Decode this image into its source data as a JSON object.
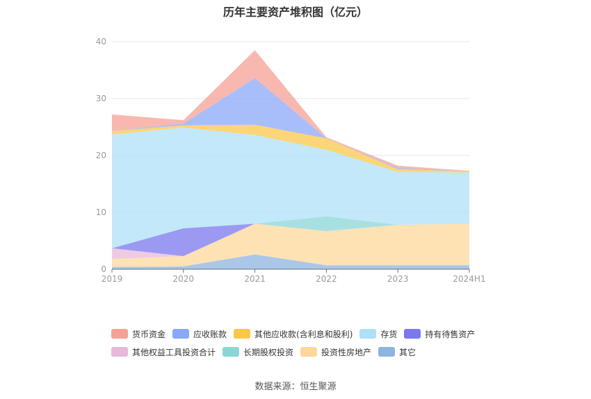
{
  "chart_data": {
    "type": "area",
    "title": "历年主要资产堆积图（亿元）",
    "source": "数据来源：恒生聚源",
    "categories": [
      "2019",
      "2020",
      "2021",
      "2022",
      "2023",
      "2024H1"
    ],
    "ylim": [
      0,
      40
    ],
    "yticks": [
      "0",
      "10",
      "20",
      "30",
      "40"
    ],
    "grid": true,
    "legend_position": "bottom",
    "series": [
      {
        "name": "其它",
        "color": "#8eb4e2",
        "values": [
          0.4,
          0.5,
          2.6,
          0.7,
          0.7,
          0.7
        ]
      },
      {
        "name": "投资性房地产",
        "color": "#fdd89a",
        "values": [
          1.4,
          1.8,
          5.4,
          6.0,
          7.1,
          7.3
        ]
      },
      {
        "name": "长期股权投资",
        "color": "#8ad6d6",
        "values": [
          0.0,
          0.0,
          0.0,
          2.6,
          0.0,
          0.0
        ]
      },
      {
        "name": "其他权益工具投资合计",
        "color": "#e8b9da",
        "values": [
          1.9,
          0.0,
          0.0,
          0.0,
          0.0,
          0.0
        ]
      },
      {
        "name": "持有待售资产",
        "color": "#7b77ee",
        "values": [
          0.0,
          4.9,
          0.0,
          0.0,
          0.0,
          0.0
        ]
      },
      {
        "name": "存货",
        "color": "#aee0f8",
        "values": [
          20.0,
          17.7,
          15.6,
          11.7,
          9.3,
          9.0
        ]
      },
      {
        "name": "其他应收款(含利息和股利)",
        "color": "#fbc74a",
        "values": [
          0.6,
          0.4,
          1.8,
          2.0,
          0.5,
          0.2
        ]
      },
      {
        "name": "应收账款",
        "color": "#8aa8f8",
        "values": [
          0.0,
          0.3,
          8.2,
          0.0,
          0.2,
          0.0
        ]
      },
      {
        "name": "货币资金",
        "color": "#f6a096",
        "values": [
          2.9,
          0.6,
          4.9,
          0.2,
          0.4,
          0.1
        ]
      }
    ]
  },
  "legend_rows": [
    [
      "货币资金",
      "应收账款",
      "其他应收款(含利息和股利)",
      "存货",
      "持有待售资产"
    ],
    [
      "其他权益工具投资合计",
      "长期股权投资",
      "投资性房地产",
      "其它"
    ]
  ]
}
